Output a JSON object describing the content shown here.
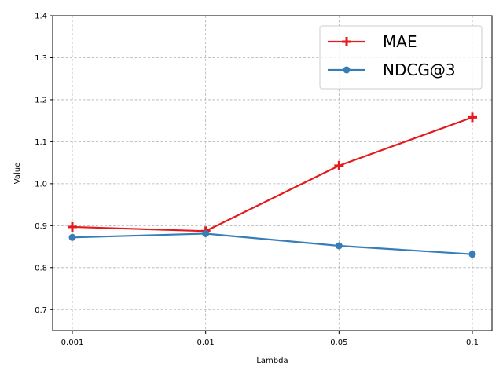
{
  "chart_data": {
    "type": "line",
    "categories": [
      "0.001",
      "0.01",
      "0.05",
      "0.1"
    ],
    "series": [
      {
        "name": "MAE",
        "values": [
          0.897,
          0.887,
          1.043,
          1.158
        ],
        "color": "#e41a1c",
        "marker": "plus"
      },
      {
        "name": "NDCG@3",
        "values": [
          0.872,
          0.881,
          0.852,
          0.832
        ],
        "color": "#377eb8",
        "marker": "circle"
      }
    ],
    "title": "",
    "xlabel": "Lambda",
    "ylabel": "Value",
    "ylim": [
      0.65,
      1.4
    ],
    "yticks": [
      "0.7",
      "0.8",
      "0.9",
      "1.0",
      "1.1",
      "1.2",
      "1.3",
      "1.4"
    ],
    "grid": true,
    "legend_position": "top-right"
  }
}
